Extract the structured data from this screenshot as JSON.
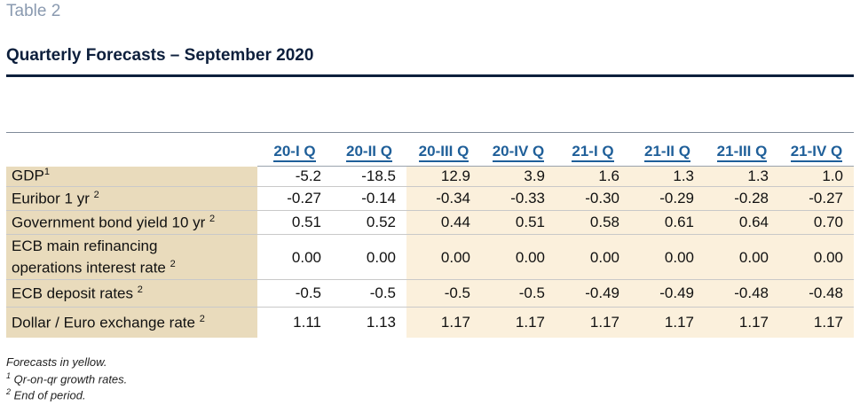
{
  "header": {
    "table_number": "Table 2",
    "title": "Quarterly Forecasts – September 2020"
  },
  "columns": [
    "20-I Q",
    "20-II Q",
    "20-III Q",
    "20-IV Q",
    "21-I Q",
    "21-II Q",
    "21-III Q",
    "21-IV Q"
  ],
  "forecast_start_index": 2,
  "rows": [
    {
      "label": "GDP",
      "sup": "1",
      "values": [
        "-5.2",
        "-18.5",
        "12.9",
        "3.9",
        "1.6",
        "1.3",
        "1.3",
        "1.0"
      ]
    },
    {
      "label": "Euribor 1 yr",
      "sup": "2",
      "values": [
        "-0.27",
        "-0.14",
        "-0.34",
        "-0.33",
        "-0.30",
        "-0.29",
        "-0.28",
        "-0.27"
      ]
    },
    {
      "label": "Government bond yield 10 yr",
      "sup": "2",
      "values": [
        "0.51",
        "0.52",
        "0.44",
        "0.51",
        "0.58",
        "0.61",
        "0.64",
        "0.70"
      ]
    },
    {
      "label_line1": "ECB main refinancing",
      "label_line2": "operations interest rate",
      "sup": "2",
      "values": [
        "0.00",
        "0.00",
        "0.00",
        "0.00",
        "0.00",
        "0.00",
        "0.00",
        "0.00"
      ]
    },
    {
      "label": "ECB deposit rates",
      "sup": "2",
      "values": [
        "-0.5",
        "-0.5",
        "-0.5",
        "-0.5",
        "-0.49",
        "-0.49",
        "-0.48",
        "-0.48"
      ]
    },
    {
      "label": "Dollar / Euro exchange rate",
      "sup": "2",
      "values": [
        "1.11",
        "1.13",
        "1.17",
        "1.17",
        "1.17",
        "1.17",
        "1.17",
        "1.17"
      ]
    }
  ],
  "footnotes": {
    "forecast_note": "Forecasts in yellow.",
    "note1_mark": "1",
    "note1": " Qr-on-qr growth rates.",
    "note2_mark": "2",
    "note2": " End of period."
  },
  "colors": {
    "label_bg": "#e9dbbc",
    "forecast_bg": "#fbf0dc",
    "header_text": "#1f5f99",
    "title_text": "#0d1f3c"
  }
}
